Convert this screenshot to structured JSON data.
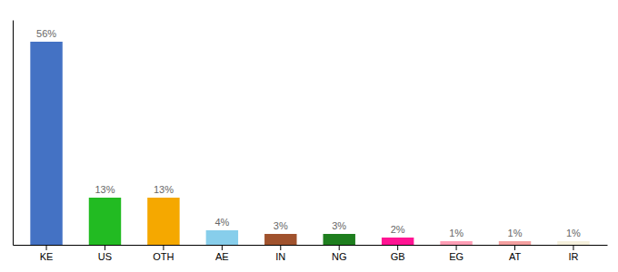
{
  "chart_data": {
    "type": "bar",
    "categories": [
      "KE",
      "US",
      "OTH",
      "AE",
      "IN",
      "NG",
      "GB",
      "EG",
      "AT",
      "IR"
    ],
    "values": [
      56,
      13,
      13,
      4,
      3,
      3,
      2,
      1,
      1,
      1
    ],
    "value_labels": [
      "56%",
      "13%",
      "13%",
      "4%",
      "3%",
      "3%",
      "2%",
      "1%",
      "1%",
      "1%"
    ],
    "colors": [
      "#4472c4",
      "#22bb22",
      "#f5a800",
      "#87ceeb",
      "#a0522d",
      "#1e7e1e",
      "#ff1493",
      "#ff9eb5",
      "#f4a0a0",
      "#f5f0dc"
    ],
    "ylim": [
      0,
      62
    ],
    "data_labels": true,
    "tick_labels": "x"
  }
}
